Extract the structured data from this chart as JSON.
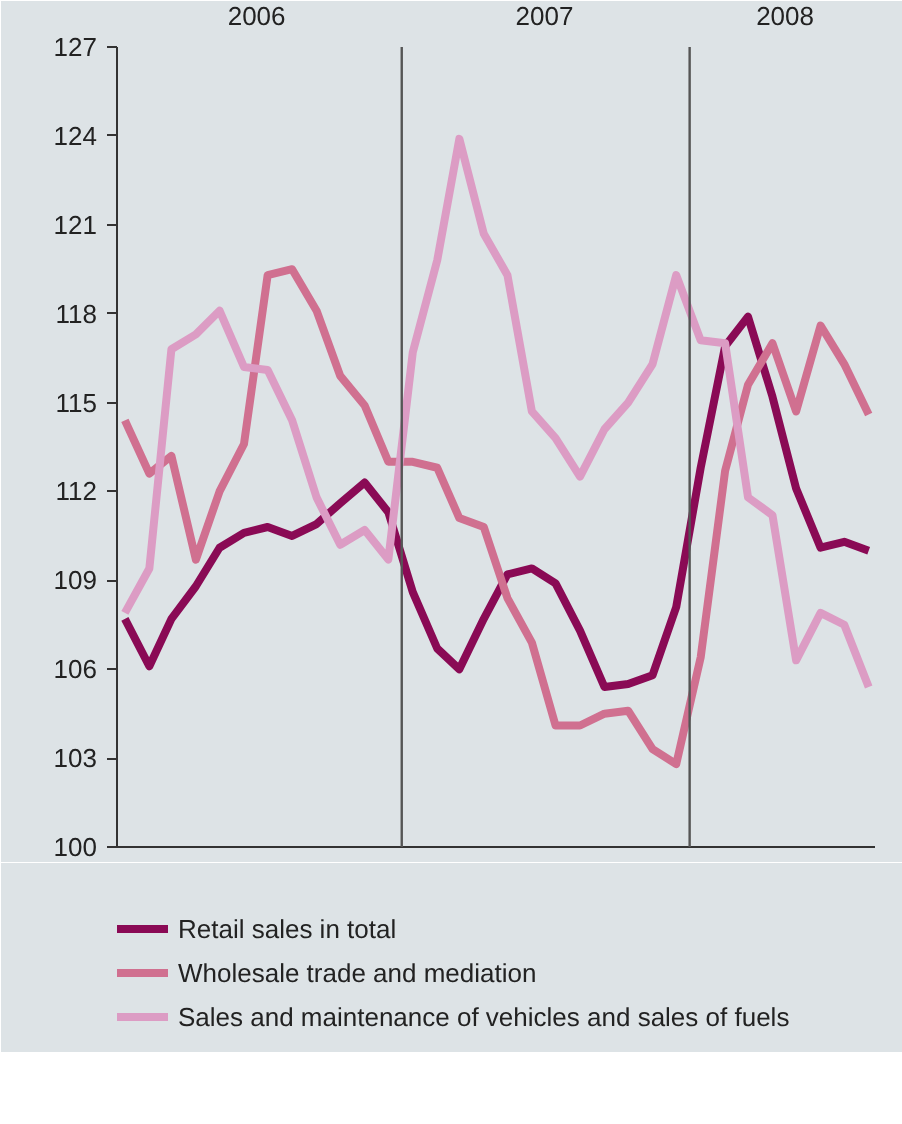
{
  "chart_data": {
    "type": "line",
    "x": [
      "2006-01-15",
      "2006-02-15",
      "2006-03-15",
      "2006-04-15",
      "2006-05-15",
      "2006-06-15",
      "2006-07-15",
      "2006-08-15",
      "2006-09-15",
      "2006-10-15",
      "2006-11-15",
      "2006-12-15",
      "2007-01-15",
      "2007-02-15",
      "2007-03-15",
      "2007-04-15",
      "2007-05-15",
      "2007-06-15",
      "2007-07-15",
      "2007-08-15",
      "2007-09-15",
      "2007-10-15",
      "2007-11-15",
      "2007-12-15",
      "2008-01-15",
      "2008-02-15",
      "2008-03-15",
      "2008-04-15",
      "2008-05-15",
      "2008-06-15",
      "2008-07-15",
      "2008-08-15"
    ],
    "series": [
      {
        "name": "Retail sales in total",
        "color": "#8a0a55",
        "values": [
          107.7,
          106.1,
          107.7,
          108.8,
          110.1,
          110.6,
          110.8,
          110.5,
          110.9,
          111.6,
          112.3,
          111.3,
          108.6,
          106.7,
          106.0,
          107.7,
          109.2,
          109.4,
          108.9,
          107.3,
          105.4,
          105.5,
          105.8,
          108.1,
          112.8,
          116.9,
          117.9,
          115.2,
          112.1,
          110.1,
          110.3,
          110.0
        ]
      },
      {
        "name": "Wholesale trade and mediation",
        "color": "#d07090",
        "values": [
          114.4,
          112.6,
          113.2,
          109.7,
          112.0,
          113.6,
          119.3,
          119.5,
          118.1,
          115.9,
          114.9,
          113.0,
          113.0,
          112.8,
          111.1,
          110.8,
          108.4,
          106.9,
          104.1,
          104.1,
          104.5,
          104.6,
          103.3,
          102.8,
          106.4,
          112.7,
          115.6,
          117.0,
          114.7,
          117.6,
          116.3,
          114.6
        ]
      },
      {
        "name": "Sales and maintenance of vehicles and sales of fuels",
        "color": "#dc9cc4",
        "values": [
          107.9,
          109.4,
          116.8,
          117.3,
          118.1,
          116.2,
          116.1,
          114.4,
          111.8,
          110.2,
          110.7,
          109.7,
          116.7,
          119.8,
          123.9,
          120.7,
          119.3,
          114.7,
          113.8,
          112.5,
          114.1,
          115.0,
          116.3,
          119.3,
          117.1,
          117.0,
          111.8,
          111.2,
          106.3,
          107.9,
          107.5,
          105.4
        ]
      }
    ],
    "xlim": [
      "2006-01-05",
      "2008-08-23"
    ],
    "xticks": [
      {
        "value": "2006-07-01",
        "label": "2006"
      },
      {
        "value": "2007-07-01",
        "label": "2007"
      },
      {
        "value": "2008-05-01",
        "label": "2008"
      }
    ],
    "ylim": [
      100,
      127
    ],
    "yticks": [
      100,
      103,
      106,
      109,
      112,
      115,
      118,
      121,
      124,
      127
    ],
    "ref_lines": [
      {
        "axis": "x",
        "value": "2007-01-01",
        "color": "#555555"
      },
      {
        "axis": "x",
        "value": "2008-01-01",
        "color": "#555555"
      }
    ],
    "grid": false,
    "legend": "bottom",
    "line_style": "solid",
    "marker": "none"
  }
}
